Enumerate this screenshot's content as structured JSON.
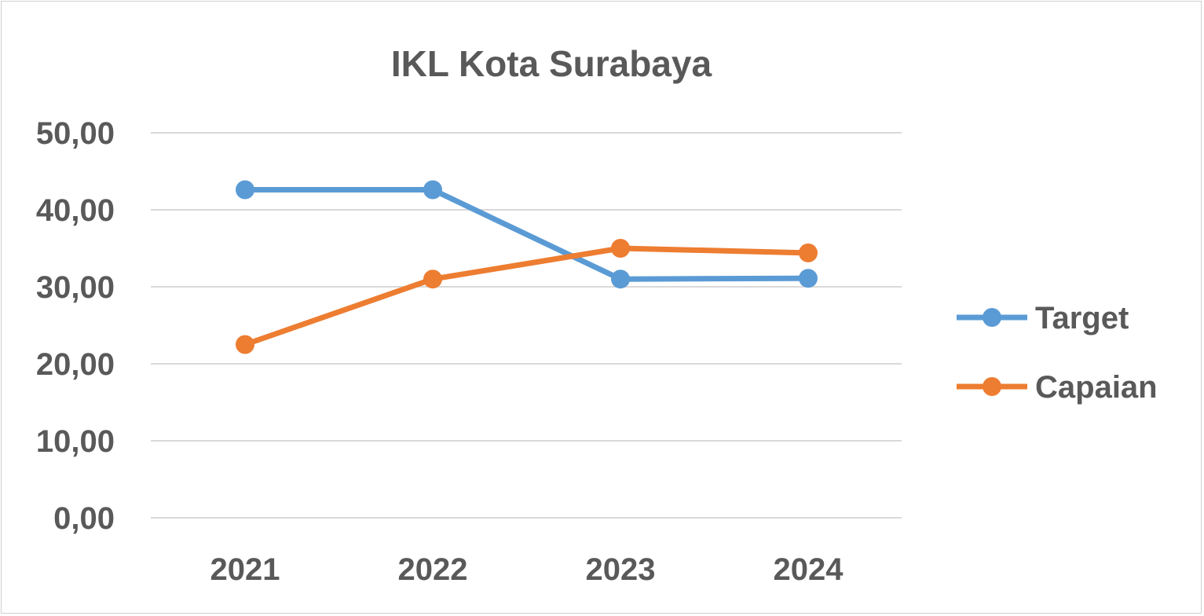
{
  "chart_data": {
    "type": "line",
    "title": "IKL Kota Surabaya",
    "categories": [
      "2021",
      "2022",
      "2023",
      "2024"
    ],
    "ylim": [
      0,
      50
    ],
    "yticks": [
      0,
      10,
      20,
      30,
      40,
      50
    ],
    "ytick_labels": [
      "0,00",
      "10,00",
      "20,00",
      "30,00",
      "40,00",
      "50,00"
    ],
    "grid": true,
    "legend_position": "right",
    "series": [
      {
        "name": "Target",
        "color": "#5B9BD5",
        "values": [
          42.6,
          42.6,
          31.0,
          31.1
        ]
      },
      {
        "name": "Capaian",
        "color": "#ED7D31",
        "values": [
          22.5,
          31.0,
          35.0,
          34.4
        ]
      }
    ]
  }
}
